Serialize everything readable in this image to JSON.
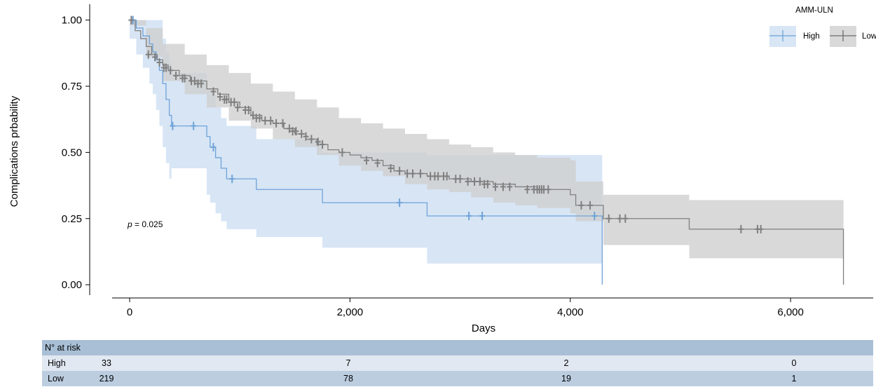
{
  "chart_data": {
    "type": "line",
    "subtype": "kaplan-meier",
    "xlabel": "Days",
    "ylabel": "Complications prbability",
    "xlim": [
      -350,
      6750
    ],
    "ylim": [
      -0.05,
      1.06
    ],
    "xticks": [
      0,
      2000,
      4000,
      6000
    ],
    "xtick_labels": [
      "0",
      "2,000",
      "4,000",
      "6,000"
    ],
    "yticks": [
      0,
      0.25,
      0.5,
      0.75,
      1.0
    ],
    "ytick_labels": [
      "0.00",
      "0.25",
      "0.50",
      "0.75",
      "1.00"
    ],
    "grid": false,
    "legend_title": "AMM-ULN",
    "legend_position": "top-right",
    "annotation": {
      "p_label": "p",
      "p_value": " = 0.025"
    },
    "series": [
      {
        "name": "High",
        "color": "#6fa3d8",
        "band_color": "#c9dcf1",
        "steps": [
          [
            0,
            1.0
          ],
          [
            60,
            0.97
          ],
          [
            120,
            0.94
          ],
          [
            180,
            0.91
          ],
          [
            210,
            0.88
          ],
          [
            240,
            0.85
          ],
          [
            270,
            0.81
          ],
          [
            300,
            0.76
          ],
          [
            330,
            0.7
          ],
          [
            360,
            0.64
          ],
          [
            380,
            0.6
          ],
          [
            700,
            0.56
          ],
          [
            730,
            0.52
          ],
          [
            780,
            0.48
          ],
          [
            830,
            0.44
          ],
          [
            880,
            0.4
          ],
          [
            1150,
            0.36
          ],
          [
            1750,
            0.31
          ],
          [
            2700,
            0.26
          ],
          [
            4290,
            0.0
          ]
        ],
        "upper": [
          [
            0,
            1.0
          ],
          [
            60,
            1.0
          ],
          [
            200,
            1.0
          ],
          [
            300,
            0.93
          ],
          [
            330,
            0.88
          ],
          [
            360,
            0.84
          ],
          [
            380,
            0.8
          ],
          [
            700,
            0.74
          ],
          [
            730,
            0.72
          ],
          [
            780,
            0.67
          ],
          [
            830,
            0.63
          ],
          [
            880,
            0.6
          ],
          [
            1150,
            0.55
          ],
          [
            1750,
            0.5
          ],
          [
            2700,
            0.49
          ],
          [
            4290,
            0.43
          ]
        ],
        "lower": [
          [
            0,
            0.93
          ],
          [
            60,
            0.87
          ],
          [
            120,
            0.82
          ],
          [
            180,
            0.76
          ],
          [
            210,
            0.72
          ],
          [
            240,
            0.66
          ],
          [
            270,
            0.6
          ],
          [
            300,
            0.52
          ],
          [
            330,
            0.46
          ],
          [
            360,
            0.4
          ],
          [
            380,
            0.44
          ],
          [
            700,
            0.34
          ],
          [
            730,
            0.31
          ],
          [
            780,
            0.27
          ],
          [
            830,
            0.24
          ],
          [
            880,
            0.21
          ],
          [
            1150,
            0.18
          ],
          [
            1750,
            0.14
          ],
          [
            2700,
            0.08
          ],
          [
            4290,
            0.08
          ]
        ],
        "censor": [
          [
            30,
            1.0
          ],
          [
            390,
            0.6
          ],
          [
            580,
            0.6
          ],
          [
            760,
            0.52
          ],
          [
            930,
            0.4
          ],
          [
            2450,
            0.31
          ],
          [
            3080,
            0.26
          ],
          [
            3200,
            0.26
          ],
          [
            4220,
            0.26
          ]
        ]
      },
      {
        "name": "Low",
        "color": "#7f7f7f",
        "band_color": "#cfcfcf",
        "steps": [
          [
            0,
            1.0
          ],
          [
            50,
            0.96
          ],
          [
            100,
            0.93
          ],
          [
            150,
            0.9
          ],
          [
            200,
            0.87
          ],
          [
            250,
            0.85
          ],
          [
            300,
            0.83
          ],
          [
            350,
            0.81
          ],
          [
            450,
            0.79
          ],
          [
            550,
            0.77
          ],
          [
            700,
            0.74
          ],
          [
            800,
            0.72
          ],
          [
            900,
            0.69
          ],
          [
            1000,
            0.67
          ],
          [
            1100,
            0.64
          ],
          [
            1200,
            0.62
          ],
          [
            1300,
            0.61
          ],
          [
            1400,
            0.59
          ],
          [
            1500,
            0.57
          ],
          [
            1600,
            0.55
          ],
          [
            1700,
            0.53
          ],
          [
            1800,
            0.51
          ],
          [
            1900,
            0.5
          ],
          [
            2000,
            0.49
          ],
          [
            2100,
            0.48
          ],
          [
            2200,
            0.47
          ],
          [
            2300,
            0.45
          ],
          [
            2400,
            0.43
          ],
          [
            2500,
            0.42
          ],
          [
            2700,
            0.41
          ],
          [
            2900,
            0.4
          ],
          [
            3100,
            0.39
          ],
          [
            3300,
            0.38
          ],
          [
            3500,
            0.37
          ],
          [
            3700,
            0.36
          ],
          [
            4000,
            0.34
          ],
          [
            4050,
            0.3
          ],
          [
            4300,
            0.25
          ],
          [
            5080,
            0.21
          ],
          [
            6480,
            0.0
          ]
        ],
        "upper": [
          [
            0,
            1.0
          ],
          [
            150,
            0.97
          ],
          [
            300,
            0.91
          ],
          [
            500,
            0.87
          ],
          [
            700,
            0.83
          ],
          [
            900,
            0.8
          ],
          [
            1100,
            0.76
          ],
          [
            1300,
            0.73
          ],
          [
            1500,
            0.7
          ],
          [
            1700,
            0.67
          ],
          [
            1900,
            0.63
          ],
          [
            2100,
            0.61
          ],
          [
            2300,
            0.59
          ],
          [
            2500,
            0.57
          ],
          [
            2700,
            0.55
          ],
          [
            2900,
            0.53
          ],
          [
            3100,
            0.52
          ],
          [
            3300,
            0.5
          ],
          [
            3500,
            0.49
          ],
          [
            3700,
            0.48
          ],
          [
            4000,
            0.47
          ],
          [
            4050,
            0.39
          ],
          [
            4300,
            0.34
          ],
          [
            5080,
            0.32
          ],
          [
            6480,
            0.32
          ]
        ],
        "lower": [
          [
            0,
            0.98
          ],
          [
            150,
            0.86
          ],
          [
            300,
            0.77
          ],
          [
            500,
            0.72
          ],
          [
            700,
            0.67
          ],
          [
            900,
            0.62
          ],
          [
            1100,
            0.59
          ],
          [
            1300,
            0.55
          ],
          [
            1500,
            0.52
          ],
          [
            1700,
            0.49
          ],
          [
            1900,
            0.45
          ],
          [
            2100,
            0.43
          ],
          [
            2300,
            0.41
          ],
          [
            2500,
            0.38
          ],
          [
            2700,
            0.36
          ],
          [
            2900,
            0.35
          ],
          [
            3100,
            0.33
          ],
          [
            3300,
            0.31
          ],
          [
            3500,
            0.3
          ],
          [
            3700,
            0.29
          ],
          [
            4000,
            0.27
          ],
          [
            4050,
            0.24
          ],
          [
            4300,
            0.15
          ],
          [
            5080,
            0.1
          ],
          [
            6480,
            0.1
          ]
        ],
        "censor": [
          [
            15,
            1.0
          ],
          [
            170,
            0.87
          ],
          [
            230,
            0.86
          ],
          [
            270,
            0.84
          ],
          [
            310,
            0.82
          ],
          [
            330,
            0.82
          ],
          [
            370,
            0.81
          ],
          [
            420,
            0.79
          ],
          [
            480,
            0.78
          ],
          [
            500,
            0.78
          ],
          [
            560,
            0.77
          ],
          [
            590,
            0.77
          ],
          [
            620,
            0.76
          ],
          [
            650,
            0.76
          ],
          [
            760,
            0.73
          ],
          [
            820,
            0.71
          ],
          [
            860,
            0.7
          ],
          [
            880,
            0.7
          ],
          [
            920,
            0.69
          ],
          [
            950,
            0.69
          ],
          [
            980,
            0.67
          ],
          [
            1050,
            0.66
          ],
          [
            1080,
            0.66
          ],
          [
            1120,
            0.64
          ],
          [
            1150,
            0.63
          ],
          [
            1180,
            0.63
          ],
          [
            1230,
            0.62
          ],
          [
            1280,
            0.62
          ],
          [
            1330,
            0.61
          ],
          [
            1390,
            0.61
          ],
          [
            1450,
            0.59
          ],
          [
            1480,
            0.58
          ],
          [
            1510,
            0.58
          ],
          [
            1560,
            0.57
          ],
          [
            1600,
            0.56
          ],
          [
            1650,
            0.55
          ],
          [
            1710,
            0.54
          ],
          [
            1750,
            0.53
          ],
          [
            1930,
            0.5
          ],
          [
            2150,
            0.47
          ],
          [
            2250,
            0.46
          ],
          [
            2370,
            0.44
          ],
          [
            2450,
            0.43
          ],
          [
            2520,
            0.42
          ],
          [
            2570,
            0.42
          ],
          [
            2640,
            0.42
          ],
          [
            2730,
            0.41
          ],
          [
            2770,
            0.41
          ],
          [
            2800,
            0.41
          ],
          [
            2850,
            0.41
          ],
          [
            2880,
            0.41
          ],
          [
            2960,
            0.4
          ],
          [
            3000,
            0.4
          ],
          [
            3070,
            0.39
          ],
          [
            3130,
            0.39
          ],
          [
            3180,
            0.39
          ],
          [
            3220,
            0.38
          ],
          [
            3250,
            0.38
          ],
          [
            3320,
            0.37
          ],
          [
            3390,
            0.37
          ],
          [
            3450,
            0.37
          ],
          [
            3610,
            0.36
          ],
          [
            3670,
            0.36
          ],
          [
            3700,
            0.36
          ],
          [
            3720,
            0.36
          ],
          [
            3740,
            0.36
          ],
          [
            3760,
            0.36
          ],
          [
            3800,
            0.36
          ],
          [
            4100,
            0.3
          ],
          [
            4180,
            0.3
          ],
          [
            4350,
            0.25
          ],
          [
            4450,
            0.25
          ],
          [
            4500,
            0.25
          ],
          [
            5550,
            0.21
          ],
          [
            5700,
            0.21
          ],
          [
            5730,
            0.21
          ]
        ]
      }
    ]
  },
  "risk_table": {
    "title": "N° at risk",
    "times": [
      0,
      2000,
      4000,
      6000
    ],
    "rows": [
      {
        "label": "High",
        "values": [
          "33",
          "7",
          "2",
          "0"
        ]
      },
      {
        "label": "Low",
        "values": [
          "219",
          "78",
          "19",
          "1"
        ]
      }
    ]
  }
}
